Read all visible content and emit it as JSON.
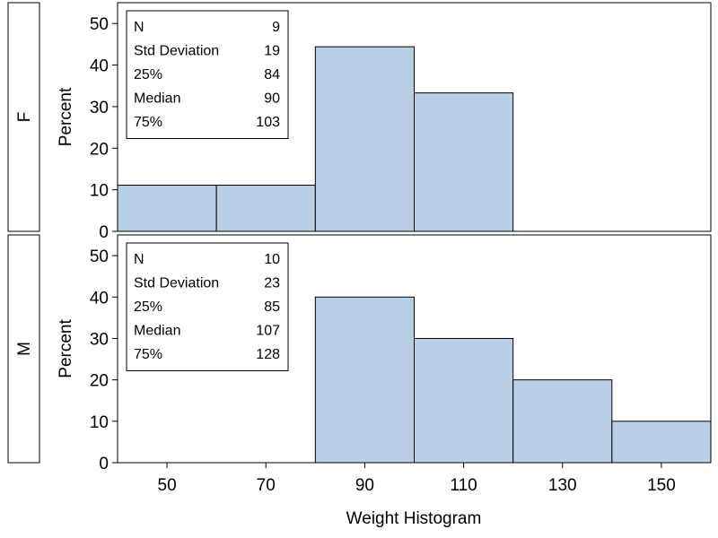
{
  "chart_data": {
    "type": "bar",
    "xlabel": "Weight Histogram",
    "ylabel": "Percent",
    "xlim": [
      40,
      160
    ],
    "ylim": [
      0,
      55
    ],
    "x_ticks": [
      50,
      70,
      90,
      110,
      130,
      150
    ],
    "y_ticks": [
      0,
      10,
      20,
      30,
      40,
      50
    ],
    "bin_width": 20,
    "bar_color": "#b9cfe5",
    "panels": [
      {
        "group": "F",
        "bins": [
          {
            "from": 40,
            "to": 60,
            "percent": 11.1
          },
          {
            "from": 60,
            "to": 80,
            "percent": 11.1
          },
          {
            "from": 80,
            "to": 100,
            "percent": 44.4
          },
          {
            "from": 100,
            "to": 120,
            "percent": 33.3
          }
        ],
        "stats": [
          {
            "label": "N",
            "value": "9"
          },
          {
            "label": "Std Deviation",
            "value": "19"
          },
          {
            "label": "25%",
            "value": "84"
          },
          {
            "label": "Median",
            "value": "90"
          },
          {
            "label": "75%",
            "value": "103"
          }
        ]
      },
      {
        "group": "M",
        "bins": [
          {
            "from": 80,
            "to": 100,
            "percent": 40
          },
          {
            "from": 100,
            "to": 120,
            "percent": 30
          },
          {
            "from": 120,
            "to": 140,
            "percent": 20
          },
          {
            "from": 140,
            "to": 160,
            "percent": 10
          }
        ],
        "stats": [
          {
            "label": "N",
            "value": "10"
          },
          {
            "label": "Std Deviation",
            "value": "23"
          },
          {
            "label": "25%",
            "value": "85"
          },
          {
            "label": "Median",
            "value": "107"
          },
          {
            "label": "75%",
            "value": "128"
          }
        ]
      }
    ]
  }
}
